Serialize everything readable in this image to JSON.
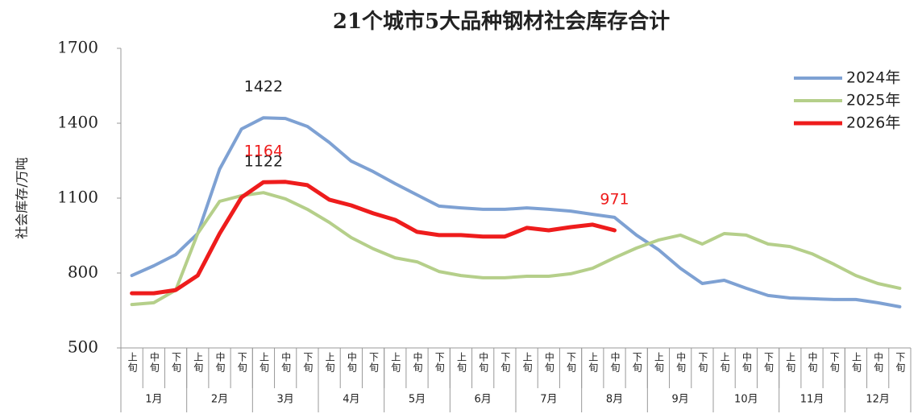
{
  "chart_data": {
    "type": "line",
    "title": "21个城市5大品种钢材社会库存合计",
    "y_label": "社会库存/万吨",
    "ylim": [
      500,
      1700
    ],
    "yticks": [
      500,
      800,
      1100,
      1400,
      1700
    ],
    "grid": false,
    "legend": "top-right",
    "months": [
      "1月",
      "2月",
      "3月",
      "4月",
      "5月",
      "6月",
      "7月",
      "8月",
      "9月",
      "10月",
      "11月",
      "12月"
    ],
    "categories": [
      "上旬",
      "中旬",
      "下旬",
      "上旬",
      "中旬",
      "下旬",
      "上旬",
      "中旬",
      "下旬",
      "上旬",
      "中旬",
      "下旬",
      "上旬",
      "中旬",
      "下旬",
      "上旬",
      "中旬",
      "下旬",
      "上旬",
      "中旬",
      "下旬",
      "上旬",
      "中旬",
      "下旬",
      "上旬",
      "中旬",
      "下旬",
      "上旬",
      "中旬",
      "下旬",
      "上旬",
      "中旬",
      "下旬",
      "上旬",
      "中旬",
      "下旬"
    ],
    "series": [
      {
        "name": "2024年",
        "color": "#7ea1d3",
        "values": [
          790,
          829,
          874,
          958,
          1216,
          1377,
          1422,
          1419,
          1387,
          1323,
          1248,
          1206,
          1158,
          1113,
          1068,
          1061,
          1055,
          1055,
          1061,
          1055,
          1048,
          1035,
          1023,
          952,
          894,
          819,
          758,
          771,
          739,
          710,
          700,
          697,
          694,
          694,
          681,
          665
        ],
        "value_labels": [
          null,
          null,
          null,
          null,
          null,
          null,
          "1422",
          null,
          null,
          null,
          null,
          null,
          null,
          null,
          null,
          null,
          null,
          null,
          null,
          null,
          null,
          null,
          null,
          null,
          null,
          null,
          null,
          null,
          null,
          null,
          null,
          null,
          null,
          null,
          null,
          null
        ],
        "label_color": "#222222"
      },
      {
        "name": "2025年",
        "color": "#b5cf8a",
        "values": [
          674,
          681,
          732,
          958,
          1087,
          1110,
          1122,
          1097,
          1055,
          1003,
          942,
          897,
          861,
          845,
          806,
          790,
          781,
          781,
          787,
          787,
          797,
          819,
          861,
          900,
          932,
          952,
          916,
          958,
          952,
          916,
          906,
          877,
          835,
          790,
          758,
          739
        ],
        "value_labels": [
          null,
          null,
          null,
          null,
          null,
          null,
          "1122",
          null,
          null,
          null,
          null,
          null,
          null,
          null,
          null,
          null,
          null,
          null,
          null,
          null,
          null,
          null,
          null,
          null,
          null,
          null,
          null,
          null,
          null,
          null,
          null,
          null,
          null,
          null,
          null,
          null
        ],
        "label_color": "#222222"
      },
      {
        "name": "2026年",
        "color": "#ee1c1c",
        "values": [
          719,
          719,
          732,
          790,
          958,
          1103,
          1164,
          1165,
          1152,
          1094,
          1071,
          1039,
          1013,
          965,
          952,
          952,
          946,
          946,
          981,
          971,
          984,
          994,
          971,
          null,
          null,
          null,
          null,
          null,
          null,
          null,
          null,
          null,
          null,
          null,
          null,
          null
        ],
        "value_labels": [
          null,
          null,
          null,
          null,
          null,
          null,
          "1164",
          null,
          null,
          null,
          null,
          null,
          null,
          null,
          null,
          null,
          null,
          null,
          null,
          null,
          null,
          null,
          "971",
          null,
          null,
          null,
          null,
          null,
          null,
          null,
          null,
          null,
          null,
          null,
          null,
          null
        ],
        "label_color": "#ee1c1c"
      }
    ]
  }
}
